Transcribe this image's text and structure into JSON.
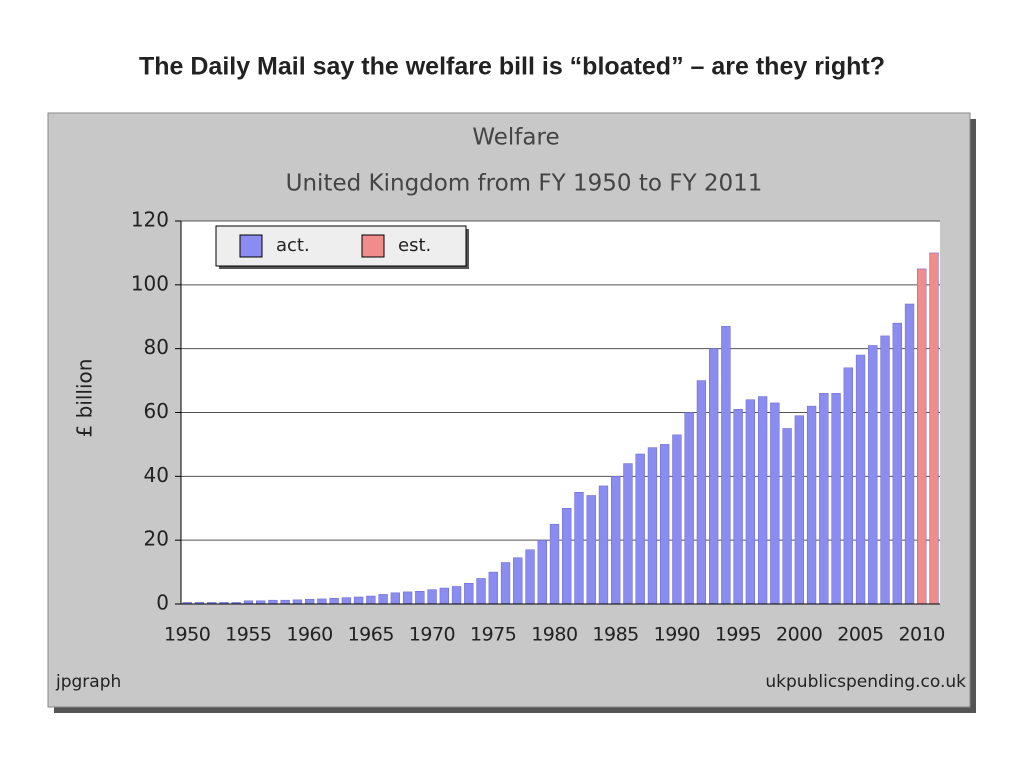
{
  "slide_title": "The Daily Mail say the welfare bill is “bloated” – are they right?",
  "chart_data": {
    "type": "bar",
    "title": "Welfare",
    "subtitle": "United Kingdom from FY 1950 to FY 2011",
    "y_label": "£ billion",
    "source_left": "jpgraph",
    "source_right": "ukpublicspending.co.uk",
    "categories": [
      "1950",
      null,
      null,
      null,
      null,
      "1955",
      null,
      null,
      null,
      null,
      "1960",
      null,
      null,
      null,
      null,
      "1965",
      null,
      null,
      null,
      null,
      "1970",
      null,
      null,
      null,
      null,
      "1975",
      null,
      null,
      null,
      null,
      "1980",
      null,
      null,
      null,
      null,
      "1985",
      null,
      null,
      null,
      null,
      "1990",
      null,
      null,
      null,
      null,
      "1995",
      null,
      null,
      null,
      null,
      "2000",
      null,
      null,
      null,
      null,
      "2005",
      null,
      null,
      null,
      null,
      "2010",
      null
    ],
    "series": [
      {
        "name": "act.",
        "color": "#8a8cf0",
        "values": [
          0.5,
          0.5,
          0.5,
          0.5,
          0.5,
          1,
          1,
          1.2,
          1.2,
          1.3,
          1.5,
          1.6,
          1.8,
          2,
          2.2,
          2.5,
          3,
          3.5,
          3.8,
          4,
          4.5,
          5,
          5.5,
          6.5,
          8,
          10,
          13,
          14.5,
          17,
          20,
          25,
          30,
          35,
          34,
          37,
          40,
          44,
          47,
          49,
          50,
          53,
          60,
          70,
          80,
          87,
          61,
          64,
          65,
          63,
          55,
          59,
          62,
          66,
          66,
          74,
          78,
          81,
          84,
          88,
          94,
          null,
          null
        ]
      },
      {
        "name": "est.",
        "color": "#f08c8c",
        "values": [
          null,
          null,
          null,
          null,
          null,
          null,
          null,
          null,
          null,
          null,
          null,
          null,
          null,
          null,
          null,
          null,
          null,
          null,
          null,
          null,
          null,
          null,
          null,
          null,
          null,
          null,
          null,
          null,
          null,
          null,
          null,
          null,
          null,
          null,
          null,
          null,
          null,
          null,
          null,
          null,
          null,
          null,
          null,
          null,
          null,
          null,
          null,
          null,
          null,
          null,
          null,
          null,
          null,
          null,
          null,
          null,
          null,
          null,
          null,
          null,
          105,
          110
        ]
      }
    ],
    "ylim": [
      0,
      120
    ],
    "yticks": [
      0,
      20,
      40,
      60,
      80,
      100,
      120
    ],
    "grid": true,
    "legend": "top-left"
  }
}
